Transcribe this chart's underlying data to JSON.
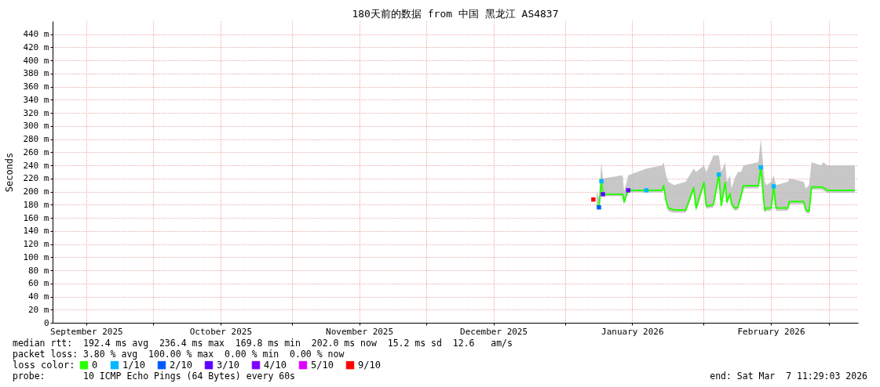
{
  "chart_data": {
    "type": "line",
    "title": "180天前的数据 from 中国 黑龙江 AS4837",
    "ylabel": "Seconds",
    "legend_title": "loss color:",
    "legend": "bottom left",
    "grid": true,
    "xlim": [
      "2025-09-08T11:29",
      "2026-03-07T11:29"
    ],
    "xticks": [
      {
        "value": "2025-09-16T00:00",
        "label": "September 2025"
      },
      {
        "value": "2025-10-01T00:00",
        "label": null
      },
      {
        "value": "2025-10-16T00:00",
        "label": "October 2025"
      },
      {
        "value": "2025-11-01T00:00",
        "label": null
      },
      {
        "value": "2025-11-16T00:00",
        "label": "November 2025"
      },
      {
        "value": "2025-12-01T00:00",
        "label": null
      },
      {
        "value": "2025-12-16T00:00",
        "label": "December 2025"
      },
      {
        "value": "2026-01-01T00:00",
        "label": null
      },
      {
        "value": "2026-01-16T00:00",
        "label": "January 2026"
      },
      {
        "value": "2026-02-01T00:00",
        "label": null
      },
      {
        "value": "2026-02-16T00:00",
        "label": "February 2026"
      },
      {
        "value": "2026-03-01T00:00",
        "label": null
      }
    ],
    "ylim": [
      0,
      460
    ],
    "yticks": [
      0,
      {
        "value": 20,
        "label": "20 m"
      },
      {
        "value": 40,
        "label": "40 m"
      },
      {
        "value": 60,
        "label": "60 m"
      },
      {
        "value": 80,
        "label": "80 m"
      },
      {
        "value": 100,
        "label": "100 m"
      },
      {
        "value": 120,
        "label": "120 m"
      },
      {
        "value": 140,
        "label": "140 m"
      },
      {
        "value": 160,
        "label": "160 m"
      },
      {
        "value": 180,
        "label": "180 m"
      },
      {
        "value": 200,
        "label": "200 m"
      },
      {
        "value": 220,
        "label": "220 m"
      },
      {
        "value": 240,
        "label": "240 m"
      },
      {
        "value": 260,
        "label": "260 m"
      },
      {
        "value": 280,
        "label": "280 m"
      },
      {
        "value": 300,
        "label": "300 m"
      },
      {
        "value": 320,
        "label": "320 m"
      },
      {
        "value": 340,
        "label": "340 m"
      },
      {
        "value": 360,
        "label": "360 m"
      },
      {
        "value": 380,
        "label": "380 m"
      },
      {
        "value": 400,
        "label": "400 m"
      },
      {
        "value": 420,
        "label": "420 m"
      },
      {
        "value": 440,
        "label": "440 m"
      }
    ],
    "series": [
      {
        "name": "0",
        "color": "#26ff00",
        "type": "line",
        "x": [
          "2026-01-08T01:00",
          "2026-01-08T14:00",
          "2026-01-09T03:00",
          "2026-01-09T11:00",
          "2026-01-13T21:00",
          "2026-01-14T05:00",
          "2026-01-15T03:00",
          "2026-01-19T04:00",
          "2026-01-22T17:00",
          "2026-01-23T01:00",
          "2026-01-23T14:00",
          "2026-01-24T02:00",
          "2026-01-25T08:00",
          "2026-01-27T23:00",
          "2026-01-29T18:00",
          "2026-01-30T07:00",
          "2026-02-01T01:00",
          "2026-02-01T14:00",
          "2026-02-03T04:00",
          "2026-02-04T09:00",
          "2026-02-04T22:00",
          "2026-02-05T19:00",
          "2026-02-06T04:00",
          "2026-02-06T21:00",
          "2026-02-07T05:00",
          "2026-02-07T22:00",
          "2026-02-08T15:00",
          "2026-02-09T08:00",
          "2026-02-09T21:00",
          "2026-02-13T05:00",
          "2026-02-13T18:00",
          "2026-02-14T15:00",
          "2026-02-15T01:00",
          "2026-02-16T02:00",
          "2026-02-16T15:00",
          "2026-02-17T04:00",
          "2026-02-19T19:00",
          "2026-02-20T04:00",
          "2026-02-23T08:00",
          "2026-02-23T20:00",
          "2026-02-24T13:00",
          "2026-02-25T02:00",
          "2026-02-27T05:00",
          "2026-02-27T18:00",
          "2026-02-28T15:00",
          "2026-03-06T19:00"
        ],
        "values": [
          180,
          176,
          216,
          196,
          196,
          184,
          202,
          202,
          202,
          209,
          186,
          175,
          172,
          172,
          206,
          175,
          214,
          178,
          180,
          226,
          179,
          214,
          184,
          197,
          182,
          175,
          176,
          194,
          209,
          209,
          237,
          172,
          175,
          175,
          208,
          175,
          175,
          185,
          185,
          172,
          170,
          207,
          207,
          206,
          202,
          202
        ],
        "lower": [
          177,
          173,
          210,
          193,
          193,
          181,
          199,
          199,
          199,
          205,
          182,
          170,
          168,
          168,
          200,
          170,
          208,
          174,
          176,
          220,
          175,
          208,
          180,
          193,
          178,
          171,
          172,
          190,
          205,
          205,
          230,
          168,
          171,
          171,
          202,
          171,
          171,
          181,
          181,
          168,
          166,
          203,
          203,
          202,
          198,
          198
        ],
        "upper": [
          200,
          190,
          245,
          220,
          225,
          200,
          225,
          235,
          240,
          245,
          225,
          215,
          210,
          215,
          235,
          230,
          240,
          230,
          255,
          255,
          230,
          245,
          215,
          225,
          205,
          220,
          230,
          230,
          240,
          245,
          280,
          215,
          210,
          215,
          225,
          210,
          215,
          220,
          215,
          205,
          210,
          245,
          240,
          245,
          240,
          240
        ]
      },
      {
        "name": "1/10",
        "color": "#00b8ff",
        "type": "scatter",
        "marker": "square",
        "x": [
          "2026-01-09T03:00",
          "2026-01-19T04:00",
          "2026-02-04T09:00",
          "2026-02-13T18:00",
          "2026-02-16T15:00"
        ],
        "values": [
          216,
          202,
          226,
          237,
          208
        ]
      },
      {
        "name": "2/10",
        "color": "#0059ff",
        "type": "scatter",
        "marker": "square",
        "x": [
          "2026-01-08T14:00"
        ],
        "values": [
          176
        ]
      },
      {
        "name": "3/10",
        "color": "#5e00ff",
        "type": "scatter",
        "marker": "square",
        "x": [
          "2026-01-09T11:00",
          "2026-01-15T03:00"
        ],
        "values": [
          196,
          202
        ]
      },
      {
        "name": "4/10",
        "color": "#7e00ff"
      },
      {
        "name": "5/10",
        "color": "#dd00ff"
      },
      {
        "name": "9/10",
        "color": "#ff0000",
        "type": "scatter",
        "marker": "square",
        "x": [
          "2026-01-07T08:00"
        ],
        "values": [
          188
        ]
      }
    ],
    "annotations": [
      "median rtt:  192.4 ms avg  236.4 ms max  169.8 ms min  202.0 ms now  15.2 ms sd  12.6   am/s",
      "packet loss: 3.80 % avg  100.00 % max  0.00 % min  0.00 % now",
      "probe:       10 ICMP Echo Pings (64 Bytes) every 60s",
      "end: Sat Mar  7 11:29:03 2026"
    ]
  }
}
